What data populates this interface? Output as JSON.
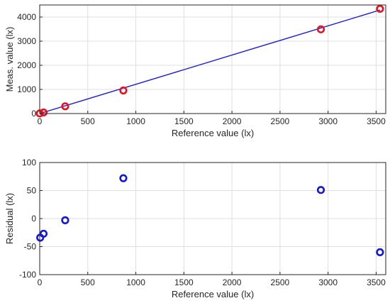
{
  "chart_data": [
    {
      "type": "scatter",
      "title": "",
      "xlabel": "Reference value (lx)",
      "ylabel": "Meas. value (lx)",
      "xlim": [
        0,
        3600
      ],
      "ylim": [
        0,
        4500
      ],
      "xticks": [
        0,
        500,
        1000,
        1500,
        2000,
        2500,
        3000,
        3500
      ],
      "yticks": [
        0,
        1000,
        2000,
        3000,
        4000
      ],
      "grid": true,
      "series": [
        {
          "marker": "circle",
          "color": "#e8121f",
          "points": [
            {
              "x": 0,
              "y": 5
            },
            {
              "x": 40,
              "y": 45
            },
            {
              "x": 265,
              "y": 300
            },
            {
              "x": 870,
              "y": 955
            },
            {
              "x": 2925,
              "y": 3490
            },
            {
              "x": 3540,
              "y": 4340
            }
          ]
        },
        {
          "marker": "line",
          "color": "#1a1adb",
          "points": [
            {
              "x": 0,
              "y": 0
            },
            {
              "x": 3540,
              "y": 4290
            }
          ]
        }
      ]
    },
    {
      "type": "scatter",
      "title": "",
      "xlabel": "Reference value (lx)",
      "ylabel": "Residual (lx)",
      "xlim": [
        0,
        3600
      ],
      "ylim": [
        -100,
        100
      ],
      "xticks": [
        0,
        500,
        1000,
        1500,
        2000,
        2500,
        3000,
        3500
      ],
      "yticks": [
        -100,
        -50,
        0,
        50,
        100
      ],
      "grid": true,
      "series": [
        {
          "marker": "circle",
          "color": "#1616d6",
          "points": [
            {
              "x": 5,
              "y": -34
            },
            {
              "x": 40,
              "y": -27
            },
            {
              "x": 265,
              "y": -3
            },
            {
              "x": 870,
              "y": 72
            },
            {
              "x": 2925,
              "y": 51
            },
            {
              "x": 3540,
              "y": -60
            }
          ]
        }
      ]
    }
  ]
}
